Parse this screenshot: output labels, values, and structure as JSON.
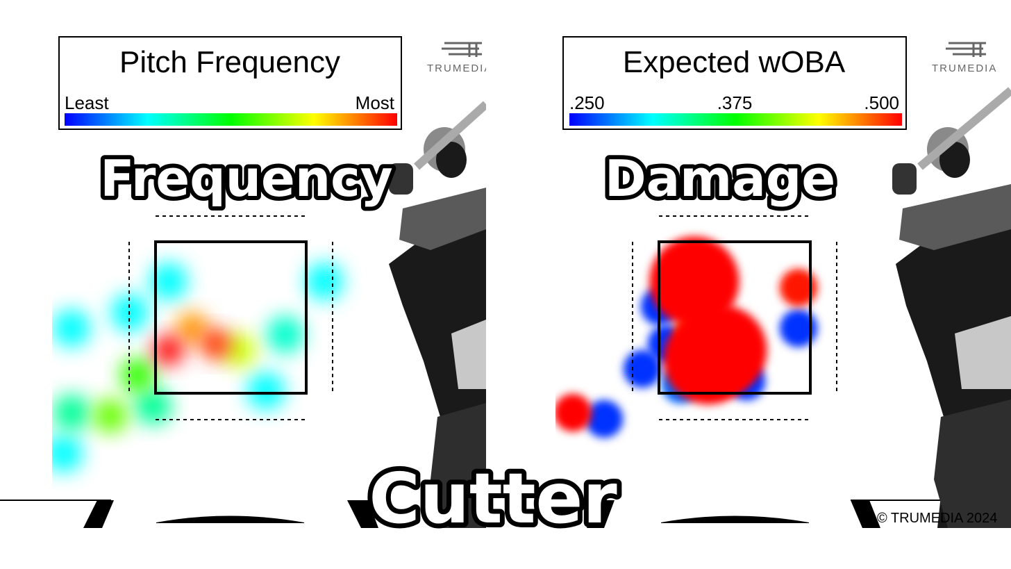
{
  "chart_data": [
    {
      "type": "heatmap",
      "title": "Pitch Frequency",
      "legend": {
        "min_label": "Least",
        "max_label": "Most",
        "mid_label": ""
      },
      "overlay_label": "Frequency",
      "watermark": "TRUMEDIA",
      "blobs": [
        {
          "x": 0.3,
          "y": 0.52,
          "v": 1.0
        },
        {
          "x": 0.42,
          "y": 0.5,
          "v": 0.95
        },
        {
          "x": 0.36,
          "y": 0.45,
          "v": 0.85
        },
        {
          "x": 0.48,
          "y": 0.52,
          "v": 0.7
        },
        {
          "x": 0.22,
          "y": 0.6,
          "v": 0.55
        },
        {
          "x": 0.15,
          "y": 0.73,
          "v": 0.6
        },
        {
          "x": 0.26,
          "y": 0.7,
          "v": 0.35
        },
        {
          "x": 0.05,
          "y": 0.72,
          "v": 0.35
        },
        {
          "x": 0.6,
          "y": 0.47,
          "v": 0.3
        },
        {
          "x": 0.55,
          "y": 0.65,
          "v": 0.25
        },
        {
          "x": 0.05,
          "y": 0.45,
          "v": 0.25
        },
        {
          "x": 0.2,
          "y": 0.4,
          "v": 0.25
        },
        {
          "x": 0.3,
          "y": 0.3,
          "v": 0.25
        },
        {
          "x": 0.03,
          "y": 0.85,
          "v": 0.25
        },
        {
          "x": 0.7,
          "y": 0.3,
          "v": 0.25
        }
      ]
    },
    {
      "type": "heatmap",
      "title": "Expected wOBA",
      "legend": {
        "min_label": ".250",
        "mid_label": ".375",
        "max_label": ".500"
      },
      "overlay_label": "Damage",
      "watermark": "TRUMEDIA",
      "copyright": "© TRUMEDIA 2024",
      "blobs": [
        {
          "x": 0.48,
          "y": 0.52,
          "v": 1.0
        },
        {
          "x": 0.44,
          "y": 0.55,
          "v": 1.0
        },
        {
          "x": 0.4,
          "y": 0.46,
          "v": 0.9
        },
        {
          "x": 0.32,
          "y": 0.5,
          "v": 0.05
        },
        {
          "x": 0.25,
          "y": 0.58,
          "v": 0.05
        },
        {
          "x": 0.3,
          "y": 0.38,
          "v": 0.05
        },
        {
          "x": 0.55,
          "y": 0.62,
          "v": 0.05
        },
        {
          "x": 0.36,
          "y": 0.63,
          "v": 0.1
        },
        {
          "x": 0.4,
          "y": 0.3,
          "v": 1.0
        },
        {
          "x": 0.7,
          "y": 0.32,
          "v": 0.98
        },
        {
          "x": 0.7,
          "y": 0.45,
          "v": 0.05
        },
        {
          "x": 0.05,
          "y": 0.72,
          "v": 1.0
        },
        {
          "x": 0.14,
          "y": 0.74,
          "v": 0.05
        }
      ]
    }
  ],
  "footer_label": "Cutter"
}
